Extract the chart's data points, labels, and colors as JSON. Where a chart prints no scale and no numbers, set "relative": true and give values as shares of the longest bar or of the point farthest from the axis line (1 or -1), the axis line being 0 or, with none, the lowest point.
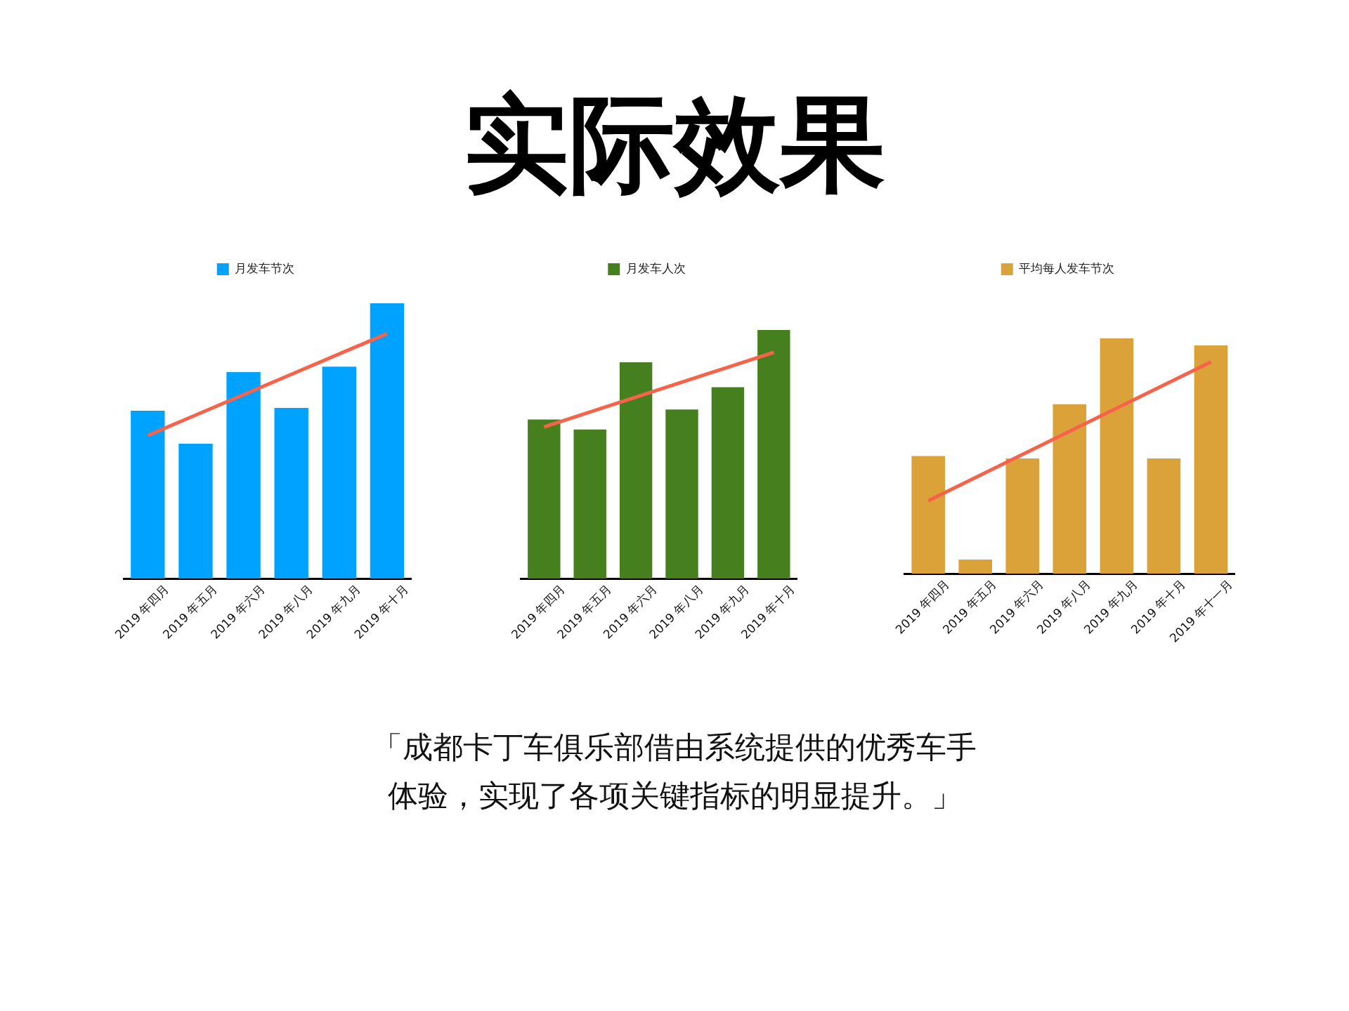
{
  "chart_data": [
    {
      "type": "other",
      "title": "实际效果"
    },
    {
      "type": "bar",
      "relative": true,
      "legend": "top",
      "categories": [
        "2019 年四月",
        "2019 年五月",
        "2019 年六月",
        "2019 年八月",
        "2019 年九月",
        "2019 年十月"
      ],
      "series": [
        {
          "name": "月发车节次",
          "color": "#00a2ff",
          "values": [
            0.61,
            0.49,
            0.75,
            0.62,
            0.77,
            1
          ]
        },
        {
          "type": "line",
          "color": "#f4634a",
          "x": [
            "2019 年四月",
            "2019 年十月"
          ],
          "values": [
            0.52,
            0.89
          ]
        }
      ]
    },
    {
      "type": "bar",
      "relative": true,
      "legend": "top",
      "categories": [
        "2019 年四月",
        "2019 年五月",
        "2019 年六月",
        "2019 年八月",
        "2019 年九月",
        "2019 年十月"
      ],
      "series": [
        {
          "name": "月发车人次",
          "color": "#46801e",
          "values": [
            0.64,
            0.6,
            0.87,
            0.68,
            0.77,
            1
          ]
        },
        {
          "type": "line",
          "color": "#f4634a",
          "x": [
            "2019 年四月",
            "2019 年十月"
          ],
          "values": [
            0.61,
            0.91
          ]
        }
      ]
    },
    {
      "type": "bar",
      "relative": true,
      "legend": "top",
      "categories": [
        "2019 年四月",
        "2019 年五月",
        "2019 年六月",
        "2019 年八月",
        "2019 年九月",
        "2019 年十月",
        "2019 年十一月"
      ],
      "series": [
        {
          "name": "平均每人发车节次",
          "color": "#dba23a",
          "values": [
            0.5,
            0.06,
            0.49,
            0.72,
            1,
            0.49,
            0.97
          ]
        },
        {
          "type": "line",
          "color": "#f4634a",
          "x": [
            "2019 年四月",
            "2019 年十一月"
          ],
          "values": [
            0.31,
            0.9
          ]
        }
      ]
    },
    {
      "type": "other",
      "annotations": [
        "「成都卡丁车俱乐部借由系统提供的优秀车手体验，实现了各项关键指标的明显提升。」"
      ]
    }
  ]
}
